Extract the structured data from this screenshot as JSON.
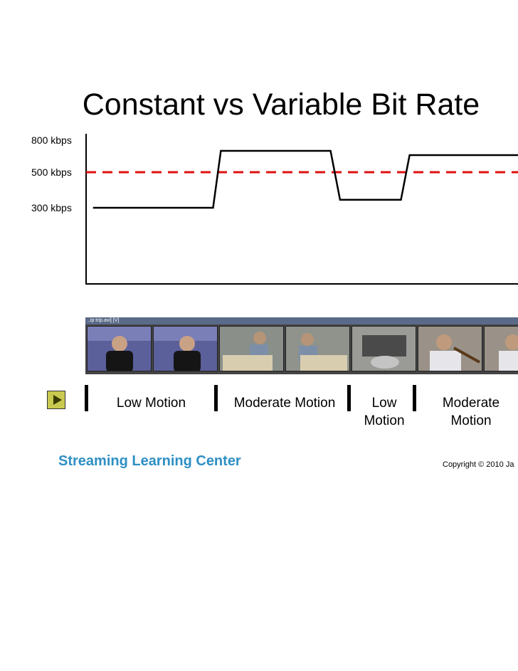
{
  "title": "Constant vs Variable Bit Rate",
  "chart_data": {
    "type": "line",
    "title": "Constant vs Variable Bit Rate",
    "y_ticks": [
      "800 kbps",
      "500 kbps",
      "300 kbps"
    ],
    "y_tick_values": [
      800,
      500,
      300
    ],
    "ylim": [
      0,
      900
    ],
    "xlim": [
      0,
      100
    ],
    "grid": false,
    "series": [
      {
        "kind": "constant",
        "color": "#e01010",
        "dashed": true,
        "x": [
          0,
          100
        ],
        "y": [
          500,
          500
        ]
      },
      {
        "kind": "variable",
        "color": "#000000",
        "dashed": false,
        "x": [
          1.6,
          29.4,
          31.2,
          56.6,
          58.8,
          72.9,
          74.9,
          100
        ],
        "y": [
          300,
          300,
          700,
          700,
          345,
          345,
          660,
          660
        ]
      }
    ]
  },
  "segments": [
    {
      "label": "Low Motion"
    },
    {
      "label": "Moderate Motion"
    },
    {
      "label_line1": "Low",
      "label_line2": "Motion"
    },
    {
      "label_line1": "Moderate",
      "label_line2": "Motion"
    }
  ],
  "filmstrip": {
    "caption": "..ip trip.avi] [V]"
  },
  "brand": "Streaming Learning Center",
  "copyright": "Copyright © 2010 Ja",
  "colors": {
    "cbr_line": "#e01010",
    "vbr_line": "#000000",
    "brand": "#2e8fc4",
    "play_button": "#c9c94f"
  }
}
